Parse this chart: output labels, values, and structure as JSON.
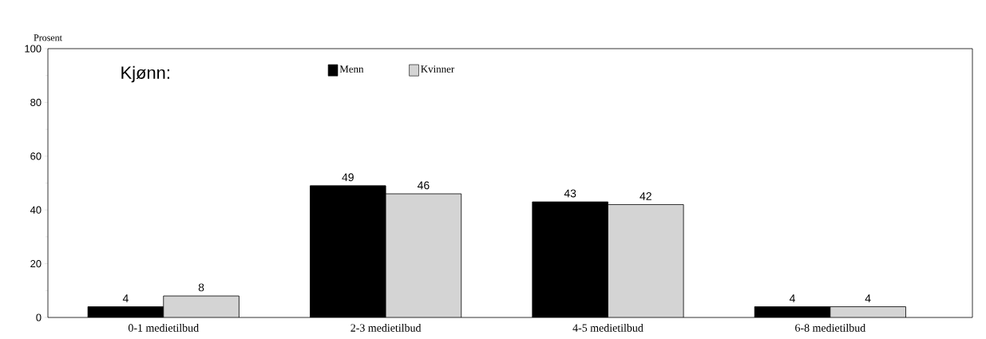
{
  "chart_data": {
    "type": "bar",
    "ylabel": "Prosent",
    "legend_title": "Kjønn:",
    "categories": [
      "0-1 medietilbud",
      "2-3 medietilbud",
      "4-5 medietilbud",
      "6-8 medietilbud"
    ],
    "series": [
      {
        "name": "Menn",
        "color": "#000000",
        "values": [
          4,
          49,
          43,
          4
        ]
      },
      {
        "name": "Kvinner",
        "color": "#d4d4d4",
        "values": [
          8,
          46,
          42,
          4
        ]
      }
    ],
    "ylim": [
      0,
      100
    ],
    "yticks": [
      0,
      20,
      40,
      60,
      80,
      100
    ],
    "data_labels": true,
    "legend": "top",
    "grid": false
  }
}
